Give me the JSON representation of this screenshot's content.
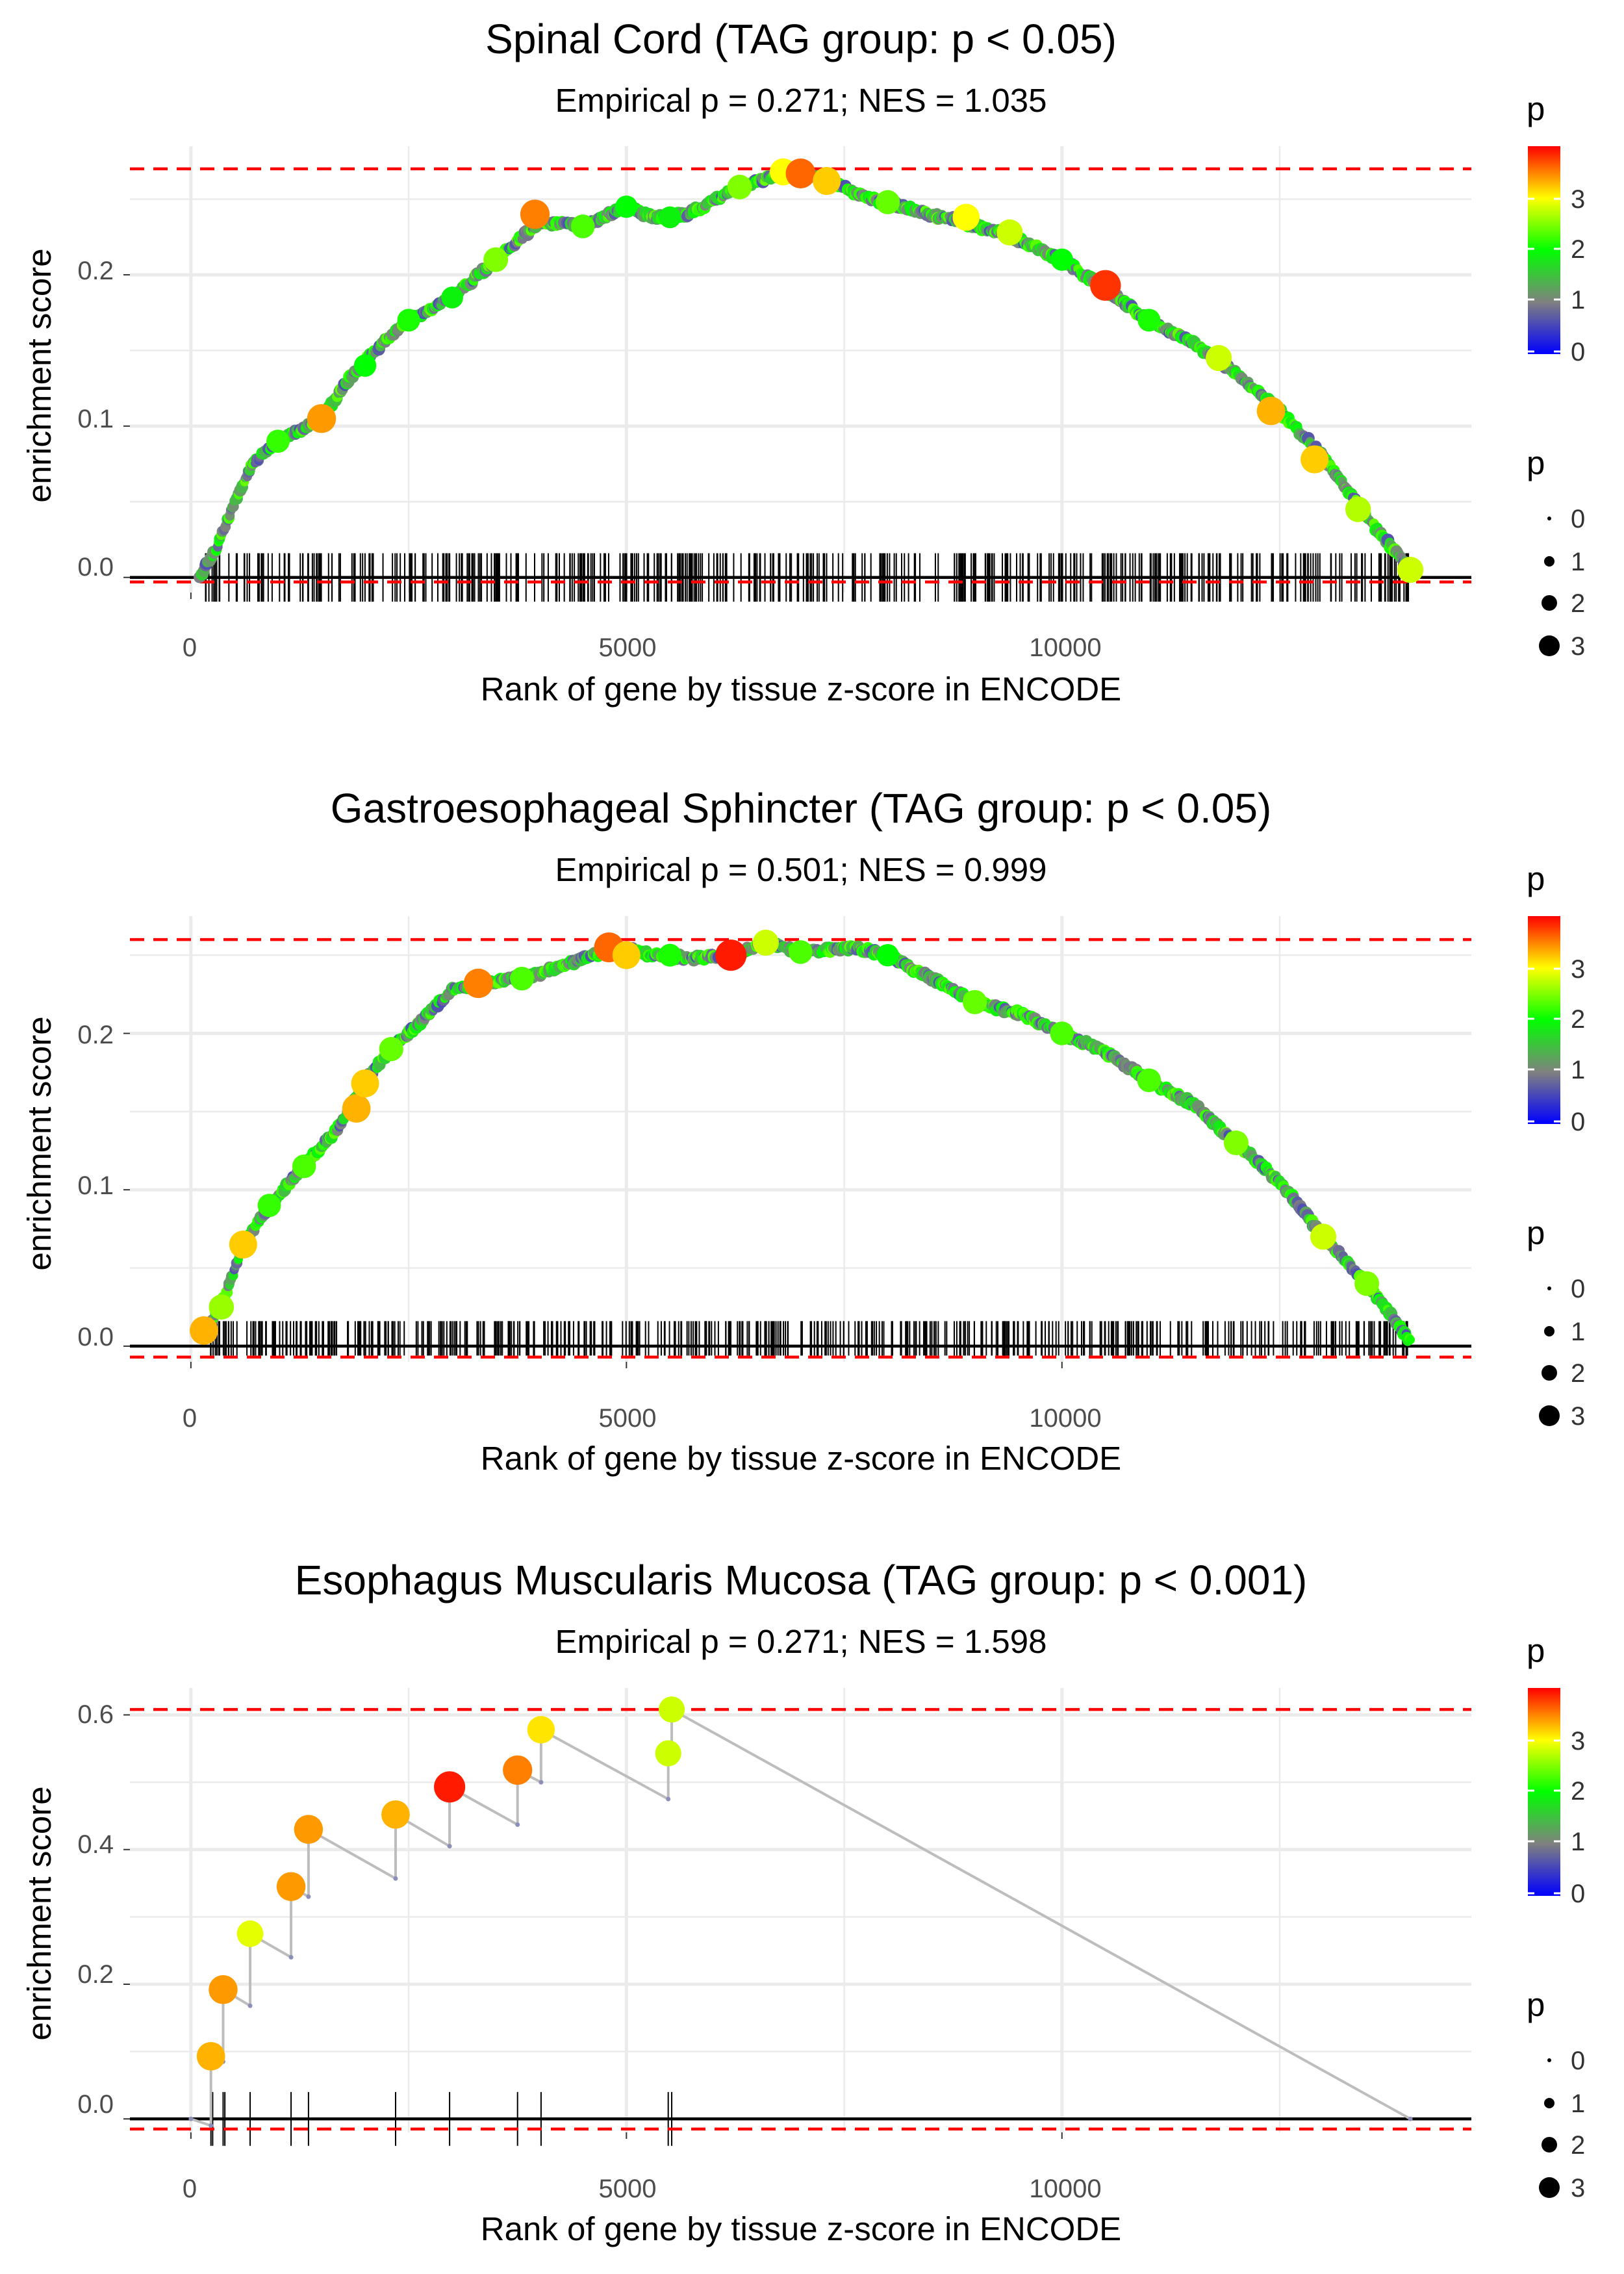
{
  "colors": {
    "ref_line": "#ff0000",
    "zero_line": "#000000",
    "curve_grey": "#bdbdbd",
    "grid": "#ebebeb",
    "palette": [
      "#0000ff",
      "#808080",
      "#00ff00",
      "#ffff00",
      "#ff0000"
    ]
  },
  "legend_labels": {
    "color_title": "p",
    "color_ticks": [
      "0",
      "1",
      "2",
      "3"
    ],
    "size_title": "p",
    "size_ticks": [
      "0",
      "1",
      "2",
      "3"
    ]
  },
  "chart_data": [
    {
      "type": "line",
      "title": "Spinal Cord (TAG group: p < 0.05)",
      "subtitle": "Empirical p = 0.271; NES = 1.035",
      "xlabel": "Rank of gene by tissue z-score in ENCODE",
      "ylabel": "enrichment score",
      "xlim": [
        -700,
        14700
      ],
      "ylim": [
        -0.01,
        0.285
      ],
      "xticks": [
        0,
        5000,
        10000
      ],
      "xtick_labels": [
        "0",
        "5000",
        "10000"
      ],
      "yticks": [
        0.0,
        0.1,
        0.2
      ],
      "ytick_labels": [
        "0.0",
        "0.1",
        "0.2"
      ],
      "ref_lines": [
        0.27,
        -0.003
      ],
      "curve": [
        [
          100,
          0.0
        ],
        [
          300,
          0.02
        ],
        [
          500,
          0.05
        ],
        [
          700,
          0.075
        ],
        [
          1000,
          0.09
        ],
        [
          1500,
          0.105
        ],
        [
          1800,
          0.13
        ],
        [
          2200,
          0.155
        ],
        [
          2500,
          0.17
        ],
        [
          3000,
          0.185
        ],
        [
          3500,
          0.21
        ],
        [
          4000,
          0.235
        ],
        [
          4500,
          0.232
        ],
        [
          5000,
          0.245
        ],
        [
          5300,
          0.238
        ],
        [
          5700,
          0.24
        ],
        [
          6200,
          0.255
        ],
        [
          6800,
          0.268
        ],
        [
          7200,
          0.265
        ],
        [
          7800,
          0.25
        ],
        [
          8500,
          0.24
        ],
        [
          9300,
          0.228
        ],
        [
          10000,
          0.21
        ],
        [
          10500,
          0.19
        ],
        [
          11000,
          0.17
        ],
        [
          11500,
          0.155
        ],
        [
          12000,
          0.135
        ],
        [
          12500,
          0.11
        ],
        [
          13000,
          0.08
        ],
        [
          13500,
          0.04
        ],
        [
          14000,
          0.005
        ]
      ],
      "points": [
        [
          1000,
          0.09,
          2.2
        ],
        [
          1500,
          0.105,
          3.4
        ],
        [
          2000,
          0.14,
          2.0
        ],
        [
          2500,
          0.17,
          2.1
        ],
        [
          3000,
          0.185,
          1.9
        ],
        [
          3500,
          0.21,
          2.5
        ],
        [
          3950,
          0.24,
          3.5
        ],
        [
          4500,
          0.232,
          2.3
        ],
        [
          5000,
          0.245,
          2.0
        ],
        [
          5500,
          0.238,
          1.9
        ],
        [
          6300,
          0.258,
          2.5
        ],
        [
          6800,
          0.268,
          3.0
        ],
        [
          7000,
          0.267,
          3.6
        ],
        [
          7300,
          0.262,
          3.2
        ],
        [
          8000,
          0.248,
          2.4
        ],
        [
          8900,
          0.238,
          3.0
        ],
        [
          9400,
          0.228,
          2.8
        ],
        [
          10000,
          0.21,
          2.0
        ],
        [
          10500,
          0.193,
          3.8
        ],
        [
          11000,
          0.17,
          2.1
        ],
        [
          11800,
          0.145,
          2.8
        ],
        [
          12400,
          0.11,
          3.3
        ],
        [
          12900,
          0.078,
          3.2
        ],
        [
          13400,
          0.045,
          2.7
        ],
        [
          14000,
          0.005,
          2.8
        ]
      ],
      "rug": {
        "count": 460,
        "from": 150,
        "to": 14000,
        "top": 0.016,
        "bottom": -0.016
      }
    },
    {
      "type": "line",
      "title": "Gastroesophageal Sphincter (TAG group: p < 0.05)",
      "subtitle": "Empirical p = 0.501; NES = 0.999",
      "xlabel": "Rank of gene by tissue z-score in ENCODE",
      "ylabel": "enrichment score",
      "xlim": [
        -700,
        14700
      ],
      "ylim": [
        -0.01,
        0.275
      ],
      "xticks": [
        0,
        5000,
        10000
      ],
      "xtick_labels": [
        "0",
        "5000",
        "10000"
      ],
      "yticks": [
        0.0,
        0.1,
        0.2
      ],
      "ytick_labels": [
        "0.0",
        "0.1",
        "0.2"
      ],
      "ref_lines": [
        0.26,
        -0.007
      ],
      "curve": [
        [
          150,
          0.01
        ],
        [
          350,
          0.025
        ],
        [
          600,
          0.065
        ],
        [
          900,
          0.09
        ],
        [
          1300,
          0.115
        ],
        [
          1700,
          0.14
        ],
        [
          2000,
          0.17
        ],
        [
          2300,
          0.19
        ],
        [
          2600,
          0.205
        ],
        [
          3000,
          0.228
        ],
        [
          3500,
          0.233
        ],
        [
          4000,
          0.238
        ],
        [
          4500,
          0.248
        ],
        [
          4900,
          0.255
        ],
        [
          5300,
          0.25
        ],
        [
          5800,
          0.248
        ],
        [
          6300,
          0.252
        ],
        [
          6600,
          0.258
        ],
        [
          7000,
          0.252
        ],
        [
          7600,
          0.255
        ],
        [
          8000,
          0.25
        ],
        [
          8500,
          0.235
        ],
        [
          9000,
          0.22
        ],
        [
          9500,
          0.213
        ],
        [
          10000,
          0.2
        ],
        [
          10500,
          0.188
        ],
        [
          11000,
          0.17
        ],
        [
          11500,
          0.155
        ],
        [
          12000,
          0.13
        ],
        [
          12500,
          0.105
        ],
        [
          13000,
          0.07
        ],
        [
          13500,
          0.04
        ],
        [
          14000,
          0.003
        ]
      ],
      "points": [
        [
          150,
          0.01,
          3.3
        ],
        [
          350,
          0.025,
          2.6
        ],
        [
          600,
          0.065,
          3.2
        ],
        [
          900,
          0.09,
          2.2
        ],
        [
          1300,
          0.115,
          2.3
        ],
        [
          1900,
          0.152,
          3.3
        ],
        [
          2000,
          0.168,
          3.2
        ],
        [
          2300,
          0.19,
          2.4
        ],
        [
          3300,
          0.232,
          3.5
        ],
        [
          3800,
          0.235,
          2.3
        ],
        [
          4800,
          0.255,
          3.6
        ],
        [
          5000,
          0.25,
          3.2
        ],
        [
          5500,
          0.25,
          2.1
        ],
        [
          6200,
          0.25,
          3.9
        ],
        [
          6600,
          0.258,
          2.8
        ],
        [
          7000,
          0.252,
          2.3
        ],
        [
          8000,
          0.25,
          2.0
        ],
        [
          9000,
          0.22,
          2.4
        ],
        [
          10000,
          0.2,
          2.3
        ],
        [
          11000,
          0.17,
          2.3
        ],
        [
          12000,
          0.13,
          2.5
        ],
        [
          13000,
          0.07,
          2.8
        ],
        [
          13500,
          0.04,
          2.5
        ]
      ],
      "rug": {
        "count": 500,
        "from": 150,
        "to": 14000,
        "top": 0.016,
        "bottom": -0.006
      }
    },
    {
      "type": "line",
      "title": "Esophagus Muscularis Mucosa (TAG group: p < 0.001)",
      "subtitle": "Empirical p = 0.271; NES = 1.598",
      "xlabel": "Rank of gene by tissue z-score in ENCODE",
      "ylabel": "enrichment score",
      "xlim": [
        -700,
        14700
      ],
      "ylim": [
        -0.02,
        0.64
      ],
      "xticks": [
        0,
        5000,
        10000
      ],
      "xtick_labels": [
        "0",
        "5000",
        "10000"
      ],
      "yticks": [
        0.0,
        0.2,
        0.4,
        0.6
      ],
      "ytick_labels": [
        "0.0",
        "0.2",
        "0.4",
        "0.6"
      ],
      "ref_lines": [
        0.608,
        -0.015
      ],
      "curve": [
        [
          0,
          0.0
        ],
        [
          230,
          -0.01
        ],
        [
          230,
          0.093
        ],
        [
          370,
          0.085
        ],
        [
          370,
          0.192
        ],
        [
          680,
          0.168
        ],
        [
          680,
          0.275
        ],
        [
          1150,
          0.24
        ],
        [
          1150,
          0.345
        ],
        [
          1350,
          0.33
        ],
        [
          1350,
          0.43
        ],
        [
          2350,
          0.357
        ],
        [
          2350,
          0.452
        ],
        [
          2970,
          0.405
        ],
        [
          2970,
          0.493
        ],
        [
          3750,
          0.437
        ],
        [
          3750,
          0.518
        ],
        [
          4020,
          0.5
        ],
        [
          4020,
          0.578
        ],
        [
          5480,
          0.475
        ],
        [
          5480,
          0.543
        ],
        [
          5520,
          0.54
        ],
        [
          5520,
          0.608
        ],
        [
          14000,
          0.0
        ]
      ],
      "points": [
        [
          230,
          0.093,
          3.3
        ],
        [
          370,
          0.192,
          3.4
        ],
        [
          680,
          0.275,
          2.9
        ],
        [
          1150,
          0.345,
          3.4
        ],
        [
          1350,
          0.43,
          3.4
        ],
        [
          2350,
          0.452,
          3.3
        ],
        [
          2970,
          0.493,
          3.9
        ],
        [
          3750,
          0.518,
          3.5
        ],
        [
          4020,
          0.578,
          3.1
        ],
        [
          5480,
          0.543,
          2.8
        ],
        [
          5520,
          0.608,
          2.8
        ]
      ],
      "rug_positions": [
        230,
        250,
        370,
        390,
        680,
        1150,
        1350,
        2350,
        2970,
        3750,
        4020,
        5480,
        5520
      ],
      "rug": {
        "top": 0.04,
        "bottom": -0.04
      }
    }
  ]
}
